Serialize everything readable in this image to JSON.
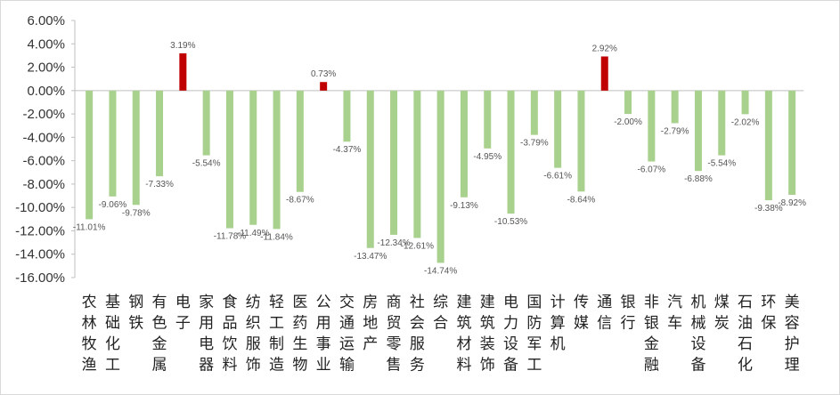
{
  "chart_data": {
    "type": "bar",
    "title": "",
    "xlabel": "",
    "ylabel": "",
    "ylim": [
      -16,
      6
    ],
    "yticks": [
      6,
      4,
      2,
      0,
      -2,
      -4,
      -6,
      -8,
      -10,
      -12,
      -14,
      -16
    ],
    "ytick_labels": [
      "6.00%",
      "4.00%",
      "2.00%",
      "0.00%",
      "-2.00%",
      "-4.00%",
      "-6.00%",
      "-8.00%",
      "-10.00%",
      "-12.00%",
      "-14.00%",
      "-16.00%"
    ],
    "grid": false,
    "legend": "none",
    "colors": {
      "positive": "#c00000",
      "negative": "#a9d18e",
      "axis": "#bfbfbf"
    },
    "categories": [
      "农林牧渔",
      "基础化工",
      "钢铁",
      "有色金属",
      "电子",
      "家用电器",
      "食品饮料",
      "纺织服饰",
      "轻工制造",
      "医药生物",
      "公用事业",
      "交通运输",
      "房地产",
      "商贸零售",
      "社会服务",
      "综合",
      "建筑材料",
      "建筑装饰",
      "电力设备",
      "国防军工",
      "计算机",
      "传媒",
      "通信",
      "银行",
      "非银金融",
      "汽车",
      "机械设备",
      "煤炭",
      "石油石化",
      "环保",
      "美容护理"
    ],
    "values": [
      -11.01,
      -9.06,
      -9.78,
      -7.33,
      3.19,
      -5.54,
      -11.78,
      -11.49,
      -11.84,
      -8.67,
      0.73,
      -4.37,
      -13.47,
      -12.34,
      -12.61,
      -14.74,
      -9.13,
      -4.95,
      -10.53,
      -3.79,
      -6.61,
      -8.64,
      2.92,
      -2.0,
      -6.07,
      -2.79,
      -6.88,
      -5.54,
      -2.02,
      -9.38,
      -8.92
    ],
    "data_labels": [
      "-11.01%",
      "-9.06%",
      "-9.78%",
      "-7.33%",
      "3.19%",
      "-5.54%",
      "-11.78%",
      "-11.49%",
      "-11.84%",
      "-8.67%",
      "0.73%",
      "-4.37%",
      "-13.47%",
      "-12.34%",
      "-12.61%",
      "-14.74%",
      "-9.13%",
      "-4.95%",
      "-10.53%",
      "-3.79%",
      "-6.61%",
      "-8.64%",
      "2.92%",
      "-2.00%",
      "-6.07%",
      "-2.79%",
      "-6.88%",
      "-5.54%",
      "-2.02%",
      "-9.38%",
      "-8.92%"
    ]
  }
}
